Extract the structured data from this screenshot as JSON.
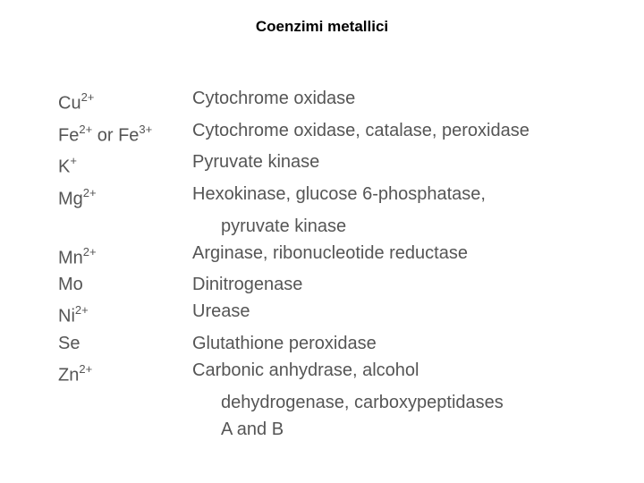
{
  "title": "Coenzimi metallici",
  "table": {
    "text_color": "#555555",
    "title_color": "#000000",
    "background_color": "#ffffff",
    "font_size_body": 20,
    "font_size_title": 17,
    "line_height": 30,
    "ion_col_width": 150,
    "rows": [
      {
        "ion_base": "Cu",
        "ion_sup": "2+",
        "ion_suffix": "",
        "enzymes": [
          "Cytochrome oxidase"
        ]
      },
      {
        "ion_base": "Fe",
        "ion_sup": "2+",
        "ion_suffix": " or Fe",
        "ion_sup2": "3+",
        "enzymes": [
          "Cytochrome oxidase, catalase, peroxidase"
        ]
      },
      {
        "ion_base": "K",
        "ion_sup": "+",
        "ion_suffix": "",
        "enzymes": [
          "Pyruvate kinase"
        ]
      },
      {
        "ion_base": "Mg",
        "ion_sup": "2+",
        "ion_suffix": "",
        "enzymes": [
          "Hexokinase, glucose 6-phosphatase,",
          "pyruvate kinase"
        ]
      },
      {
        "ion_base": "Mn",
        "ion_sup": "2+",
        "ion_suffix": "",
        "enzymes": [
          "Arginase, ribonucleotide reductase"
        ]
      },
      {
        "ion_base": "Mo",
        "ion_sup": "",
        "ion_suffix": "",
        "enzymes": [
          "Dinitrogenase"
        ]
      },
      {
        "ion_base": "Ni",
        "ion_sup": "2+",
        "ion_suffix": "",
        "enzymes": [
          "Urease"
        ]
      },
      {
        "ion_base": "Se",
        "ion_sup": "",
        "ion_suffix": "",
        "enzymes": [
          "Glutathione peroxidase"
        ]
      },
      {
        "ion_base": "Zn",
        "ion_sup": "2+",
        "ion_suffix": "",
        "enzymes": [
          "Carbonic anhydrase, alcohol",
          "dehydrogenase, carboxypeptidases",
          "A and B"
        ]
      }
    ]
  }
}
